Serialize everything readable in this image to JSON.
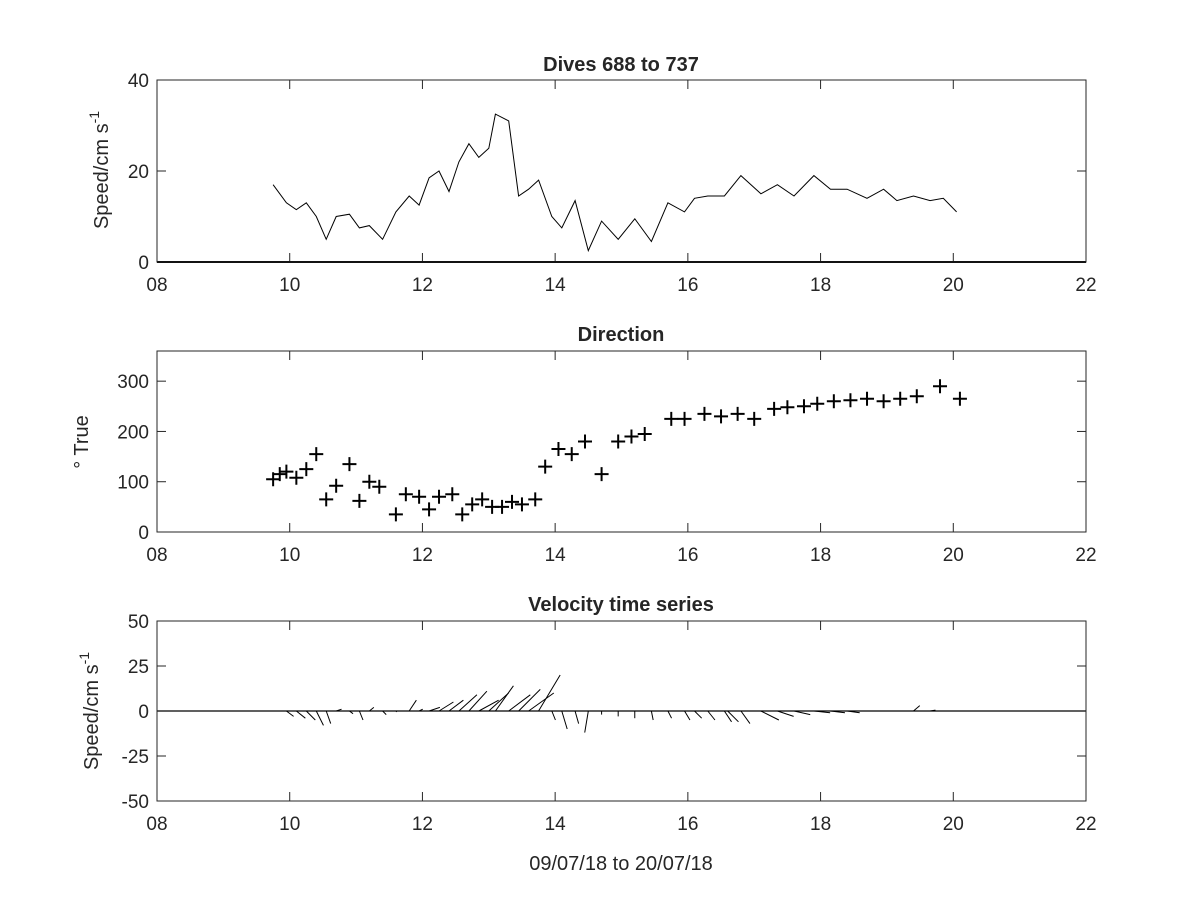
{
  "chart_data": [
    {
      "type": "line",
      "title": "Dives 688 to 737",
      "ylabel_main": "Speed/cm s",
      "ylabel_sup": "-1",
      "xlabel": "",
      "xlim": [
        8,
        22
      ],
      "ylim": [
        0,
        40
      ],
      "xtick_labels": [
        "08",
        "10",
        "12",
        "14",
        "16",
        "18",
        "20",
        "22"
      ],
      "ytick_labels": [
        "0",
        "20",
        "40"
      ],
      "series": [
        {
          "x": [
            9.75,
            9.95,
            10.1,
            10.25,
            10.4,
            10.55,
            10.7,
            10.9,
            11.05,
            11.2,
            11.4,
            11.6,
            11.8,
            11.95,
            12.1,
            12.25,
            12.4,
            12.55,
            12.7,
            12.85,
            13.0,
            13.1,
            13.3,
            13.45,
            13.6,
            13.75,
            13.95,
            14.1,
            14.3,
            14.5,
            14.7,
            14.95,
            15.2,
            15.45,
            15.7,
            15.95,
            16.1,
            16.3,
            16.55,
            16.8,
            17.1,
            17.35,
            17.6,
            17.9,
            18.15,
            18.4,
            18.7,
            18.95,
            19.15,
            19.4,
            19.65,
            19.85,
            20.05
          ],
          "y": [
            17,
            13,
            11.5,
            13,
            10,
            5,
            10,
            10.5,
            7.5,
            8,
            5,
            11,
            14.5,
            12.5,
            18.5,
            20,
            15.5,
            22,
            26,
            23,
            25,
            32.5,
            31,
            14.5,
            16,
            18,
            10,
            7.5,
            13.5,
            2.5,
            9,
            5,
            9.5,
            4.5,
            13,
            11,
            14,
            14.5,
            14.5,
            19,
            15,
            17,
            14.5,
            19,
            16,
            16,
            14,
            16,
            13.5,
            14.5,
            13.5,
            14,
            11
          ]
        }
      ]
    },
    {
      "type": "scatter",
      "title": "Direction",
      "ylabel": "° True",
      "xlabel": "",
      "xlim": [
        8,
        22
      ],
      "ylim": [
        0,
        360
      ],
      "xtick_labels": [
        "08",
        "10",
        "12",
        "14",
        "16",
        "18",
        "20",
        "22"
      ],
      "ytick_labels": [
        "0",
        "100",
        "200",
        "300"
      ],
      "marker": "+",
      "series": [
        {
          "x": [
            9.75,
            9.85,
            9.95,
            10.1,
            10.25,
            10.4,
            10.55,
            10.7,
            10.9,
            11.05,
            11.2,
            11.35,
            11.6,
            11.75,
            11.95,
            12.1,
            12.25,
            12.45,
            12.6,
            12.75,
            12.9,
            13.05,
            13.2,
            13.35,
            13.5,
            13.7,
            13.85,
            14.05,
            14.25,
            14.45,
            14.7,
            14.95,
            15.15,
            15.35,
            15.75,
            15.95,
            16.25,
            16.5,
            16.75,
            17.0,
            17.3,
            17.5,
            17.75,
            17.95,
            18.2,
            18.45,
            18.7,
            18.95,
            19.2,
            19.45,
            19.8,
            20.1
          ],
          "y": [
            105,
            115,
            120,
            108,
            125,
            155,
            65,
            92,
            135,
            62,
            100,
            90,
            35,
            75,
            70,
            45,
            70,
            75,
            35,
            55,
            65,
            50,
            50,
            60,
            55,
            65,
            130,
            165,
            155,
            180,
            115,
            180,
            190,
            195,
            225,
            225,
            235,
            230,
            235,
            225,
            245,
            248,
            250,
            255,
            260,
            262,
            265,
            260,
            265,
            270,
            290,
            265
          ]
        }
      ]
    },
    {
      "type": "vector",
      "title": "Velocity time series",
      "ylabel_main": "Speed/cm s",
      "ylabel_sup": "-1",
      "xlabel": "09/07/18 to 20/07/18",
      "xlim": [
        8,
        22
      ],
      "ylim": [
        -50,
        50
      ],
      "xtick_labels": [
        "08",
        "10",
        "12",
        "14",
        "16",
        "18",
        "20",
        "22"
      ],
      "ytick_labels": [
        "50",
        "25",
        "0",
        "-25",
        "-50"
      ],
      "vectors": [
        {
          "t": 9.75,
          "u": 1.0,
          "v": 0.0
        },
        {
          "t": 9.95,
          "u": 4.0,
          "v": -3.0
        },
        {
          "t": 10.1,
          "u": 5.0,
          "v": -4.0
        },
        {
          "t": 10.25,
          "u": 5.0,
          "v": -5.0
        },
        {
          "t": 10.4,
          "u": 4.0,
          "v": -8.0
        },
        {
          "t": 10.55,
          "u": 2.5,
          "v": -7.0
        },
        {
          "t": 10.7,
          "u": 3.0,
          "v": 1.0
        },
        {
          "t": 10.9,
          "u": 2.0,
          "v": -1.5
        },
        {
          "t": 11.05,
          "u": 2.0,
          "v": -5.0
        },
        {
          "t": 11.2,
          "u": 2.5,
          "v": 2.0
        },
        {
          "t": 11.4,
          "u": 2.0,
          "v": -2.0
        },
        {
          "t": 11.6,
          "u": 0.5,
          "v": -0.5
        },
        {
          "t": 11.8,
          "u": 4.0,
          "v": 6.0
        },
        {
          "t": 11.95,
          "u": 2.0,
          "v": 1.0
        },
        {
          "t": 12.1,
          "u": 6.0,
          "v": 2.0
        },
        {
          "t": 12.25,
          "u": 8.0,
          "v": 5.0
        },
        {
          "t": 12.4,
          "u": 8.0,
          "v": 6.0
        },
        {
          "t": 12.55,
          "u": 10.0,
          "v": 9.0
        },
        {
          "t": 12.7,
          "u": 10.0,
          "v": 11.0
        },
        {
          "t": 12.85,
          "u": 11.0,
          "v": 6.0
        },
        {
          "t": 13.0,
          "u": 11.0,
          "v": 10.0
        },
        {
          "t": 13.1,
          "u": 10.0,
          "v": 14.0
        },
        {
          "t": 13.3,
          "u": 12.0,
          "v": 9.0
        },
        {
          "t": 13.45,
          "u": 12.0,
          "v": 12.0
        },
        {
          "t": 13.6,
          "u": 14.0,
          "v": 10.0
        },
        {
          "t": 13.75,
          "u": 12.0,
          "v": 20.0
        },
        {
          "t": 13.95,
          "u": 2.0,
          "v": -5.0
        },
        {
          "t": 14.1,
          "u": 3.0,
          "v": -10.0
        },
        {
          "t": 14.3,
          "u": 2.0,
          "v": -7.0
        },
        {
          "t": 14.5,
          "u": -2.0,
          "v": -12.0
        },
        {
          "t": 14.7,
          "u": 0.0,
          "v": -2.0
        },
        {
          "t": 14.95,
          "u": 0.0,
          "v": -3.0
        },
        {
          "t": 15.2,
          "u": 0.0,
          "v": -4.0
        },
        {
          "t": 15.45,
          "u": 1.0,
          "v": -5.0
        },
        {
          "t": 15.7,
          "u": 2.0,
          "v": -4.0
        },
        {
          "t": 15.95,
          "u": 3.0,
          "v": -5.0
        },
        {
          "t": 16.1,
          "u": 4.0,
          "v": -4.0
        },
        {
          "t": 16.3,
          "u": 4.0,
          "v": -5.0
        },
        {
          "t": 16.55,
          "u": 4.0,
          "v": -6.0
        },
        {
          "t": 16.8,
          "u": 5.0,
          "v": -7.0
        },
        {
          "t": 16.6,
          "u": 6.0,
          "v": -6.0
        },
        {
          "t": 17.1,
          "u": 10.0,
          "v": -5.0
        },
        {
          "t": 17.35,
          "u": 9.0,
          "v": -3.0
        },
        {
          "t": 17.6,
          "u": 9.0,
          "v": -2.0
        },
        {
          "t": 17.9,
          "u": 9.0,
          "v": -1.0
        },
        {
          "t": 18.15,
          "u": 8.0,
          "v": -1.0
        },
        {
          "t": 18.4,
          "u": 7.0,
          "v": -1.0
        },
        {
          "t": 18.7,
          "u": 6.0,
          "v": 0.0
        },
        {
          "t": 18.95,
          "u": 4.0,
          "v": 0.0
        },
        {
          "t": 19.15,
          "u": 3.0,
          "v": 0.0
        },
        {
          "t": 19.4,
          "u": 3.5,
          "v": 3.0
        },
        {
          "t": 19.65,
          "u": 3.0,
          "v": 0.5
        },
        {
          "t": 19.85,
          "u": 1.0,
          "v": 0.0
        }
      ]
    }
  ]
}
